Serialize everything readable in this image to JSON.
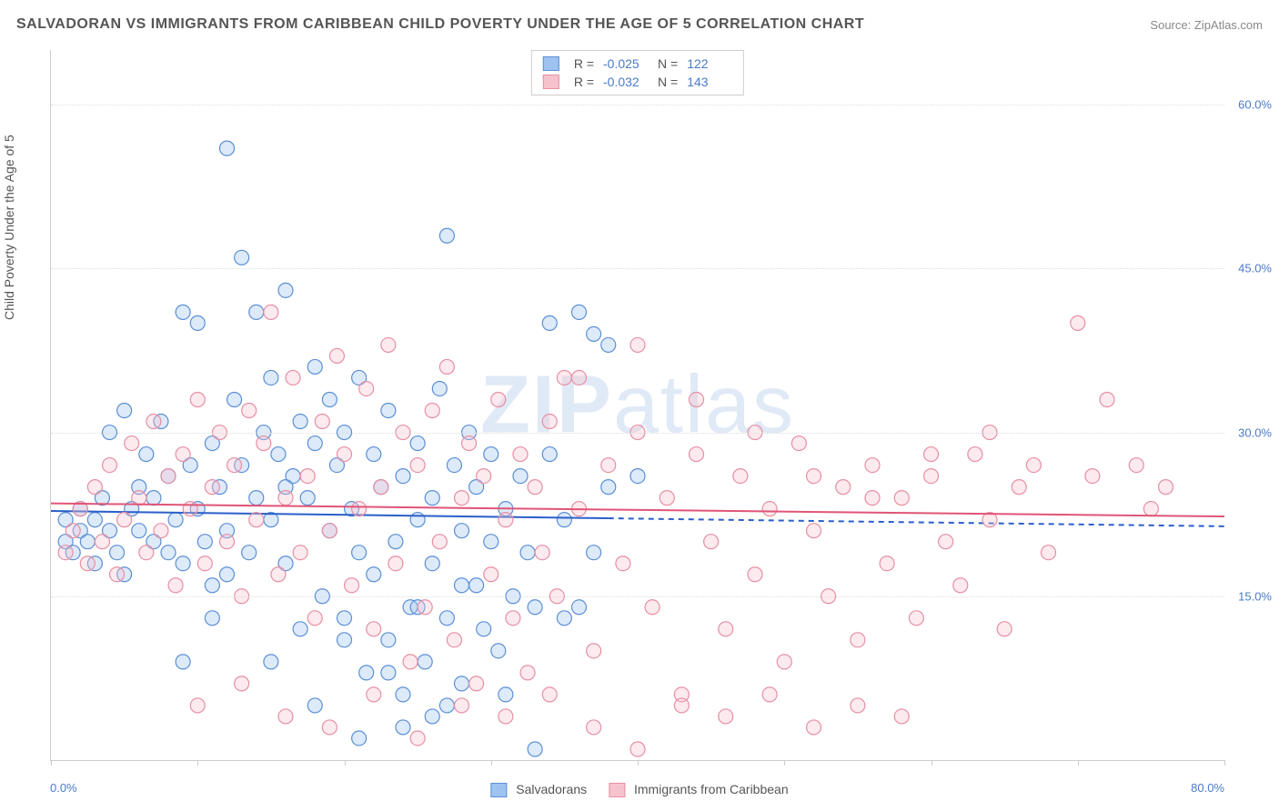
{
  "title": "SALVADORAN VS IMMIGRANTS FROM CARIBBEAN CHILD POVERTY UNDER THE AGE OF 5 CORRELATION CHART",
  "source_label": "Source:",
  "source_name": "ZipAtlas.com",
  "ylabel": "Child Poverty Under the Age of 5",
  "watermark": "ZIPatlas",
  "chart": {
    "type": "scatter",
    "background_color": "#ffffff",
    "grid_color": "#dddddd",
    "border_color": "#cccccc",
    "axis_label_color": "#4a7bc8",
    "text_color": "#555555",
    "xlim": [
      0,
      80
    ],
    "ylim": [
      0,
      65
    ],
    "xtick_positions": [
      0,
      10,
      20,
      30,
      40,
      50,
      60,
      70,
      80
    ],
    "xlabel_start": "0.0%",
    "xlabel_end": "80.0%",
    "yticks": [
      {
        "value": 15,
        "label": "15.0%"
      },
      {
        "value": 30,
        "label": "30.0%"
      },
      {
        "value": 45,
        "label": "45.0%"
      },
      {
        "value": 60,
        "label": "60.0%"
      }
    ],
    "marker_radius": 8,
    "marker_fill_opacity": 0.35,
    "marker_stroke_width": 1.2,
    "line_width": 2,
    "series": [
      {
        "name": "Salvadorans",
        "color_fill": "#9ec3f0",
        "color_stroke": "#5b8fd6",
        "line_color": "#2a5fca",
        "R": "-0.025",
        "N": "122",
        "regression": {
          "y_start": 22.8,
          "y_end": 21.4,
          "x_solid_end": 38
        },
        "points": [
          [
            1,
            20
          ],
          [
            1,
            22
          ],
          [
            1.5,
            19
          ],
          [
            2,
            21
          ],
          [
            2,
            23
          ],
          [
            2.5,
            20
          ],
          [
            3,
            22
          ],
          [
            3,
            18
          ],
          [
            3.5,
            24
          ],
          [
            4,
            30
          ],
          [
            4,
            21
          ],
          [
            4.5,
            19
          ],
          [
            5,
            32
          ],
          [
            5,
            17
          ],
          [
            5.5,
            23
          ],
          [
            6,
            25
          ],
          [
            6,
            21
          ],
          [
            6.5,
            28
          ],
          [
            7,
            20
          ],
          [
            7,
            24
          ],
          [
            7.5,
            31
          ],
          [
            8,
            19
          ],
          [
            8,
            26
          ],
          [
            8.5,
            22
          ],
          [
            9,
            41
          ],
          [
            9,
            18
          ],
          [
            9.5,
            27
          ],
          [
            10,
            23
          ],
          [
            10,
            40
          ],
          [
            10.5,
            20
          ],
          [
            11,
            29
          ],
          [
            11,
            16
          ],
          [
            11.5,
            25
          ],
          [
            12,
            56
          ],
          [
            12,
            21
          ],
          [
            12.5,
            33
          ],
          [
            13,
            27
          ],
          [
            13,
            46
          ],
          [
            13.5,
            19
          ],
          [
            14,
            24
          ],
          [
            14,
            41
          ],
          [
            14.5,
            30
          ],
          [
            15,
            22
          ],
          [
            15,
            35
          ],
          [
            15.5,
            28
          ],
          [
            16,
            43
          ],
          [
            16,
            18
          ],
          [
            16.5,
            26
          ],
          [
            17,
            12
          ],
          [
            17,
            31
          ],
          [
            17.5,
            24
          ],
          [
            18,
            29
          ],
          [
            18,
            36
          ],
          [
            18.5,
            15
          ],
          [
            19,
            33
          ],
          [
            19,
            21
          ],
          [
            19.5,
            27
          ],
          [
            20,
            13
          ],
          [
            20,
            30
          ],
          [
            20.5,
            23
          ],
          [
            21,
            19
          ],
          [
            21,
            35
          ],
          [
            21.5,
            8
          ],
          [
            22,
            28
          ],
          [
            22,
            17
          ],
          [
            22.5,
            25
          ],
          [
            23,
            11
          ],
          [
            23,
            32
          ],
          [
            23.5,
            20
          ],
          [
            24,
            6
          ],
          [
            24,
            26
          ],
          [
            24.5,
            14
          ],
          [
            25,
            29
          ],
          [
            25,
            22
          ],
          [
            25.5,
            9
          ],
          [
            26,
            24
          ],
          [
            26,
            18
          ],
          [
            26.5,
            34
          ],
          [
            27,
            48
          ],
          [
            27,
            13
          ],
          [
            27.5,
            27
          ],
          [
            28,
            21
          ],
          [
            28,
            7
          ],
          [
            28.5,
            30
          ],
          [
            29,
            16
          ],
          [
            29,
            25
          ],
          [
            29.5,
            12
          ],
          [
            30,
            28
          ],
          [
            30,
            20
          ],
          [
            30.5,
            10
          ],
          [
            31,
            23
          ],
          [
            31.5,
            15
          ],
          [
            32,
            26
          ],
          [
            32.5,
            19
          ],
          [
            33,
            14
          ],
          [
            34,
            40
          ],
          [
            35,
            22
          ],
          [
            36,
            41
          ],
          [
            37,
            39
          ],
          [
            38,
            25
          ],
          [
            33,
            1
          ],
          [
            21,
            2
          ],
          [
            26,
            4
          ],
          [
            18,
            5
          ],
          [
            24,
            3
          ],
          [
            31,
            6
          ],
          [
            15,
            9
          ],
          [
            36,
            14
          ],
          [
            28,
            16
          ],
          [
            40,
            26
          ],
          [
            34,
            28
          ],
          [
            35,
            13
          ],
          [
            37,
            19
          ],
          [
            38,
            38
          ],
          [
            23,
            8
          ],
          [
            27,
            5
          ],
          [
            20,
            11
          ],
          [
            25,
            14
          ],
          [
            12,
            17
          ],
          [
            16,
            25
          ],
          [
            9,
            9
          ],
          [
            11,
            13
          ]
        ]
      },
      {
        "name": "Immigrants from Caribbean",
        "color_fill": "#f6c3cd",
        "color_stroke": "#e78fa3",
        "line_color": "#e05577",
        "R": "-0.032",
        "N": "143",
        "regression": {
          "y_start": 23.5,
          "y_end": 22.3,
          "x_solid_end": 80
        },
        "points": [
          [
            1,
            19
          ],
          [
            1.5,
            21
          ],
          [
            2,
            23
          ],
          [
            2.5,
            18
          ],
          [
            3,
            25
          ],
          [
            3.5,
            20
          ],
          [
            4,
            27
          ],
          [
            4.5,
            17
          ],
          [
            5,
            22
          ],
          [
            5.5,
            29
          ],
          [
            6,
            24
          ],
          [
            6.5,
            19
          ],
          [
            7,
            31
          ],
          [
            7.5,
            21
          ],
          [
            8,
            26
          ],
          [
            8.5,
            16
          ],
          [
            9,
            28
          ],
          [
            9.5,
            23
          ],
          [
            10,
            33
          ],
          [
            10.5,
            18
          ],
          [
            11,
            25
          ],
          [
            11.5,
            30
          ],
          [
            12,
            20
          ],
          [
            12.5,
            27
          ],
          [
            13,
            15
          ],
          [
            13.5,
            32
          ],
          [
            14,
            22
          ],
          [
            14.5,
            29
          ],
          [
            15,
            41
          ],
          [
            15.5,
            17
          ],
          [
            16,
            24
          ],
          [
            16.5,
            35
          ],
          [
            17,
            19
          ],
          [
            17.5,
            26
          ],
          [
            18,
            13
          ],
          [
            18.5,
            31
          ],
          [
            19,
            21
          ],
          [
            19.5,
            37
          ],
          [
            20,
            28
          ],
          [
            20.5,
            16
          ],
          [
            21,
            23
          ],
          [
            21.5,
            34
          ],
          [
            22,
            12
          ],
          [
            22.5,
            25
          ],
          [
            23,
            38
          ],
          [
            23.5,
            18
          ],
          [
            24,
            30
          ],
          [
            24.5,
            9
          ],
          [
            25,
            27
          ],
          [
            25.5,
            14
          ],
          [
            26,
            32
          ],
          [
            26.5,
            20
          ],
          [
            27,
            36
          ],
          [
            27.5,
            11
          ],
          [
            28,
            24
          ],
          [
            28.5,
            29
          ],
          [
            29,
            7
          ],
          [
            29.5,
            26
          ],
          [
            30,
            17
          ],
          [
            30.5,
            33
          ],
          [
            31,
            22
          ],
          [
            31.5,
            13
          ],
          [
            32,
            28
          ],
          [
            32.5,
            8
          ],
          [
            33,
            25
          ],
          [
            33.5,
            19
          ],
          [
            34,
            31
          ],
          [
            34.5,
            15
          ],
          [
            35,
            35
          ],
          [
            36,
            23
          ],
          [
            37,
            10
          ],
          [
            38,
            27
          ],
          [
            39,
            18
          ],
          [
            40,
            30
          ],
          [
            41,
            14
          ],
          [
            42,
            24
          ],
          [
            43,
            6
          ],
          [
            44,
            28
          ],
          [
            45,
            20
          ],
          [
            46,
            12
          ],
          [
            47,
            26
          ],
          [
            48,
            17
          ],
          [
            49,
            23
          ],
          [
            50,
            9
          ],
          [
            51,
            29
          ],
          [
            52,
            21
          ],
          [
            53,
            15
          ],
          [
            54,
            25
          ],
          [
            55,
            11
          ],
          [
            56,
            27
          ],
          [
            57,
            18
          ],
          [
            58,
            24
          ],
          [
            59,
            13
          ],
          [
            60,
            26
          ],
          [
            61,
            20
          ],
          [
            62,
            16
          ],
          [
            63,
            28
          ],
          [
            64,
            22
          ],
          [
            65,
            12
          ],
          [
            66,
            25
          ],
          [
            67,
            27
          ],
          [
            68,
            19
          ],
          [
            70,
            40
          ],
          [
            71,
            26
          ],
          [
            72,
            33
          ],
          [
            74,
            27
          ],
          [
            75,
            23
          ],
          [
            76,
            25
          ],
          [
            10,
            5
          ],
          [
            13,
            7
          ],
          [
            16,
            4
          ],
          [
            19,
            3
          ],
          [
            22,
            6
          ],
          [
            25,
            2
          ],
          [
            28,
            5
          ],
          [
            31,
            4
          ],
          [
            34,
            6
          ],
          [
            37,
            3
          ],
          [
            40,
            1
          ],
          [
            43,
            5
          ],
          [
            46,
            4
          ],
          [
            49,
            6
          ],
          [
            52,
            3
          ],
          [
            55,
            5
          ],
          [
            58,
            4
          ],
          [
            36,
            35
          ],
          [
            40,
            38
          ],
          [
            44,
            33
          ],
          [
            48,
            30
          ],
          [
            52,
            26
          ],
          [
            56,
            24
          ],
          [
            60,
            28
          ],
          [
            64,
            30
          ]
        ]
      }
    ]
  },
  "legend_bottom": [
    {
      "swatch_fill": "#9ec3f0",
      "swatch_stroke": "#5b8fd6",
      "label": "Salvadorans"
    },
    {
      "swatch_fill": "#f6c3cd",
      "swatch_stroke": "#e78fa3",
      "label": "Immigrants from Caribbean"
    }
  ]
}
